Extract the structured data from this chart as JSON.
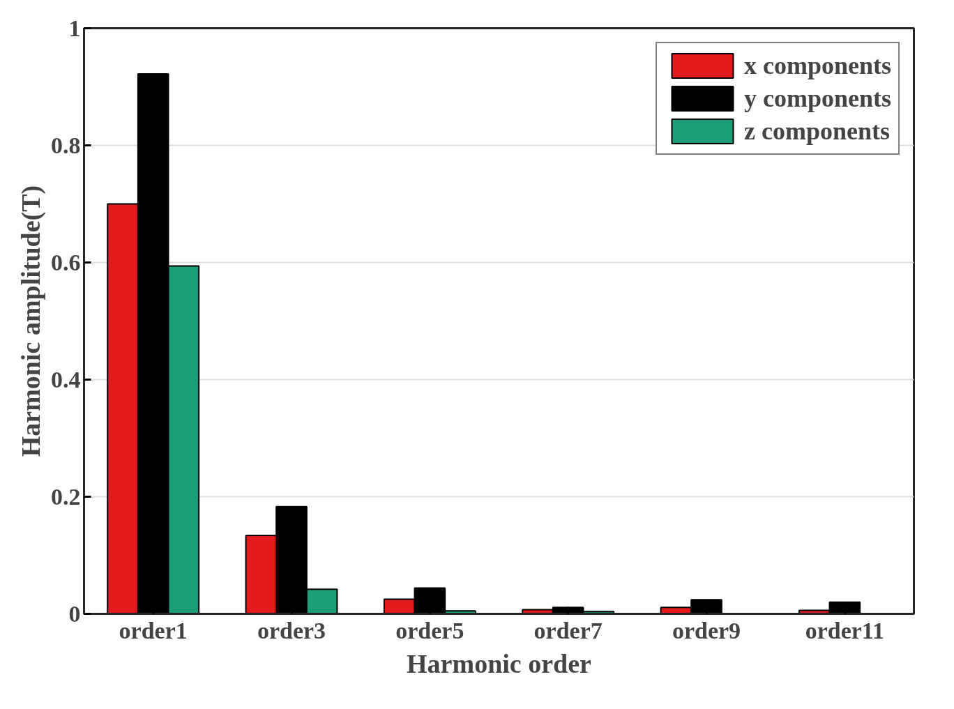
{
  "chart_data": {
    "type": "bar",
    "xlabel": "Harmonic order",
    "ylabel": "Harmonic amplitude(T)",
    "categories": [
      "order1",
      "order3",
      "order5",
      "order7",
      "order9",
      "order11"
    ],
    "series": [
      {
        "name": "x components",
        "color": "#e31a1c",
        "values": [
          0.7,
          0.134,
          0.025,
          0.007,
          0.011,
          0.006
        ]
      },
      {
        "name": "y components",
        "color": "#000000",
        "values": [
          0.922,
          0.183,
          0.044,
          0.011,
          0.024,
          0.02
        ]
      },
      {
        "name": "z components",
        "color": "#1b9e77",
        "values": [
          0.594,
          0.042,
          0.005,
          0.004,
          null,
          null
        ]
      }
    ],
    "ylim": [
      0,
      1
    ],
    "yticks": [
      0,
      0.2,
      0.4,
      0.6,
      0.8,
      1
    ],
    "grid": "y",
    "legend": "top right"
  }
}
